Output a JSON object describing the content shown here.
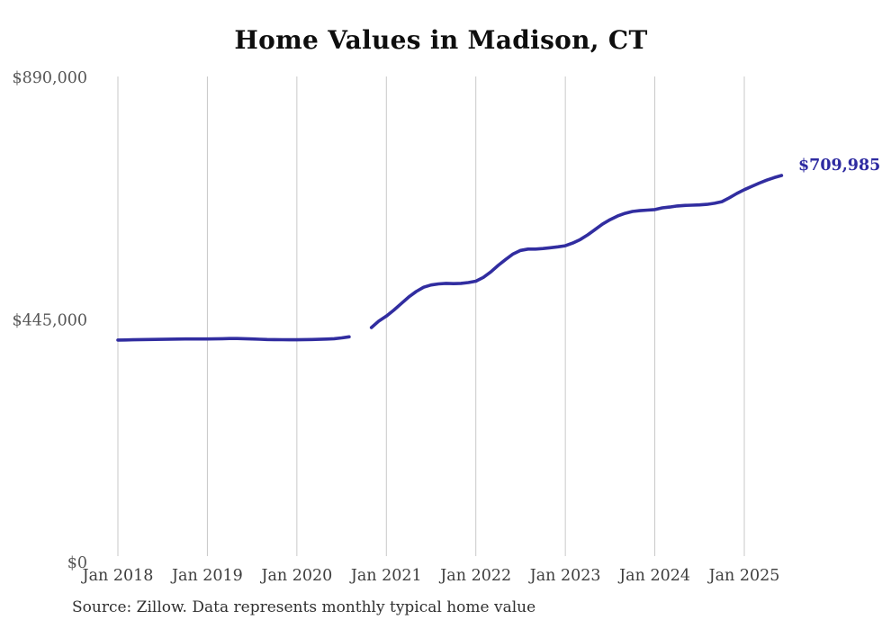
{
  "chart": {
    "title": "Home Values in Madison, CT",
    "end_label": "$709,985",
    "source": "Source: Zillow. Data represents monthly typical home value"
  },
  "chart_data": {
    "type": "line",
    "title": "Home Values in Madison, CT",
    "series_name": "Typical home value (monthly)",
    "x_start": "2018-01",
    "x_end": "2025-06",
    "ylim": [
      0,
      890000
    ],
    "grid": "vertical-only",
    "legend_position": "none",
    "line_color": "#312da0",
    "gridline_color": "#c9c9c9",
    "end_label": "$709,985",
    "final_value": 709985,
    "note": "null values indicate a visible gap in the plotted line (Sep-Oct 2020)",
    "y_ticks": [
      {
        "label": "$0",
        "value": 0
      },
      {
        "label": "$445,000",
        "value": 445000
      },
      {
        "label": "$890,000",
        "value": 890000
      }
    ],
    "x_ticks": [
      {
        "label": "Jan 2018",
        "month_index": 0
      },
      {
        "label": "Jan 2019",
        "month_index": 12
      },
      {
        "label": "Jan 2020",
        "month_index": 24
      },
      {
        "label": "Jan 2021",
        "month_index": 36
      },
      {
        "label": "Jan 2022",
        "month_index": 48
      },
      {
        "label": "Jan 2023",
        "month_index": 60
      },
      {
        "label": "Jan 2024",
        "month_index": 72
      },
      {
        "label": "Jan 2025",
        "month_index": 84
      }
    ],
    "values": [
      408000,
      408200,
      408500,
      408800,
      409000,
      409200,
      409400,
      409600,
      409800,
      410000,
      410000,
      410000,
      410000,
      410200,
      410500,
      410800,
      410800,
      410500,
      410000,
      409500,
      409000,
      408800,
      408600,
      408500,
      408500,
      408800,
      409000,
      409300,
      409800,
      410500,
      412000,
      414000,
      null,
      null,
      431000,
      443000,
      452000,
      463000,
      475000,
      487000,
      497000,
      505000,
      509000,
      511000,
      512000,
      511500,
      512000,
      513500,
      516000,
      523000,
      533000,
      545000,
      556000,
      566000,
      572500,
      575000,
      575000,
      576000,
      577500,
      579000,
      581000,
      586000,
      592500,
      601000,
      611000,
      621000,
      629000,
      635500,
      640500,
      644000,
      645500,
      646500,
      647500,
      650500,
      652000,
      654000,
      655000,
      655500,
      656000,
      657000,
      659000,
      662000,
      669000,
      677000,
      684000,
      690000,
      696000,
      701500,
      706000,
      709985
    ]
  }
}
